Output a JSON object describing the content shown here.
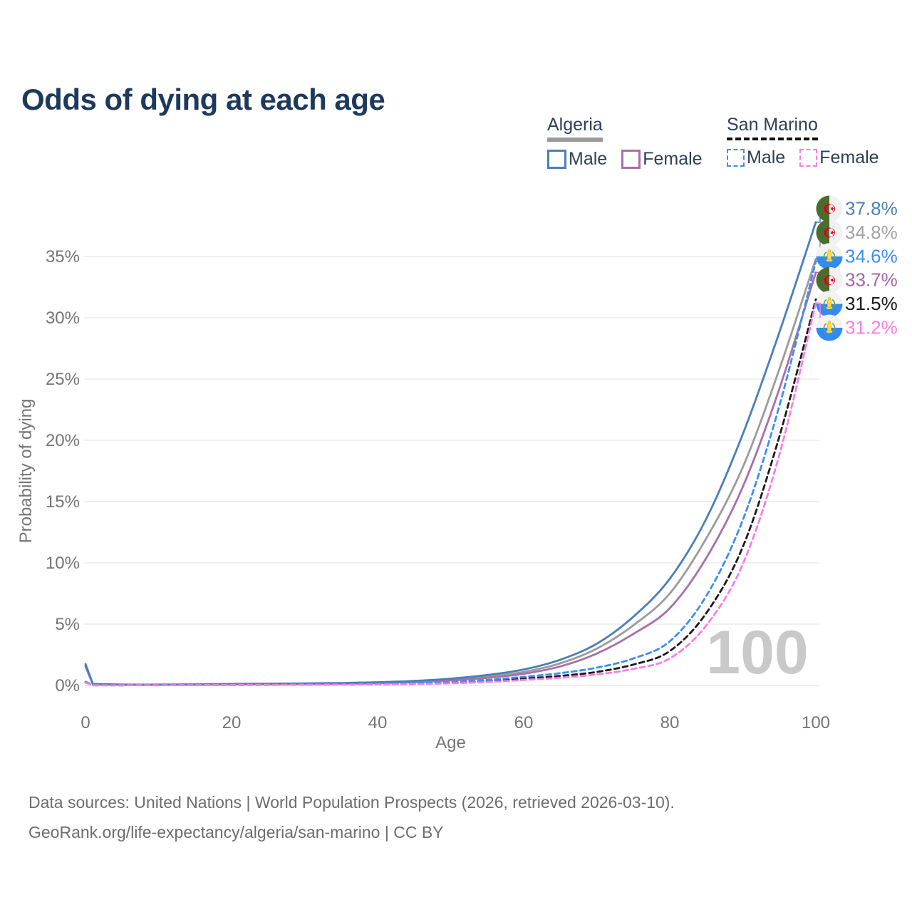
{
  "title": "Odds of dying at each age",
  "legend": {
    "groups": [
      {
        "name": "Algeria",
        "style": "solid",
        "underline_color": "#9a9a9a",
        "items": [
          {
            "label": "Male",
            "color": "#4a7ebb",
            "dashed": false
          },
          {
            "label": "Female",
            "color": "#a86fab",
            "dashed": false
          }
        ]
      },
      {
        "name": "San Marino",
        "style": "dashed",
        "underline_color": "#111111",
        "items": [
          {
            "label": "Male",
            "color": "#3d8ef2",
            "dashed": true
          },
          {
            "label": "Female",
            "color": "#fb7ce4",
            "dashed": true
          }
        ]
      }
    ]
  },
  "chart_data": {
    "type": "line",
    "title": "Odds of dying at each age",
    "xlabel": "Age",
    "ylabel": "Probability of dying",
    "xlim": [
      0,
      100
    ],
    "ylim": [
      0,
      39
    ],
    "x_ticks": [
      0,
      20,
      40,
      60,
      80,
      100
    ],
    "y_tick_values": [
      0,
      5,
      10,
      15,
      20,
      25,
      30,
      35
    ],
    "y_tick_labels": [
      "0%",
      "5%",
      "10%",
      "15%",
      "20%",
      "25%",
      "30%",
      "35%"
    ],
    "grid": "horizontal-only",
    "legend_position": "top-right",
    "hover_age_watermark": "100",
    "ages": [
      0,
      1,
      5,
      10,
      15,
      20,
      25,
      30,
      35,
      40,
      45,
      50,
      55,
      60,
      65,
      70,
      75,
      80,
      85,
      90,
      95,
      100
    ],
    "series": [
      {
        "id": "algeria-both",
        "country": "Algeria",
        "sex": "Both",
        "color": "#9b9b9b",
        "dashed": false,
        "values": [
          1.65,
          0.11,
          0.06,
          0.06,
          0.08,
          0.1,
          0.12,
          0.14,
          0.18,
          0.23,
          0.33,
          0.48,
          0.72,
          1.1,
          1.8,
          3.0,
          4.9,
          7.5,
          12.0,
          17.8,
          25.8,
          34.8
        ],
        "end_label": "34.8%",
        "label_color": "#a3a3a3",
        "label_row": 1,
        "flag": "algeria"
      },
      {
        "id": "algeria-female",
        "country": "Algeria",
        "sex": "Female",
        "color": "#a86fab",
        "dashed": false,
        "values": [
          1.55,
          0.1,
          0.05,
          0.05,
          0.06,
          0.08,
          0.09,
          0.11,
          0.14,
          0.19,
          0.28,
          0.42,
          0.62,
          0.95,
          1.55,
          2.6,
          4.2,
          6.3,
          10.4,
          16.2,
          24.2,
          33.7
        ],
        "end_label": "33.7%",
        "label_color": "#a765a8",
        "label_row": 3,
        "flag": "algeria"
      },
      {
        "id": "algeria-male",
        "country": "Algeria",
        "sex": "Male",
        "color": "#4a7ebb",
        "dashed": false,
        "values": [
          1.75,
          0.12,
          0.07,
          0.07,
          0.09,
          0.12,
          0.14,
          0.16,
          0.2,
          0.26,
          0.37,
          0.55,
          0.85,
          1.3,
          2.1,
          3.4,
          5.6,
          8.7,
          13.6,
          20.5,
          28.8,
          37.8
        ],
        "end_label": "37.8%",
        "label_color": "#4a7ebb",
        "label_row": 0,
        "flag": "algeria"
      },
      {
        "id": "san-marino-both",
        "country": "San Marino",
        "sex": "Both",
        "color": "#1a1a1a",
        "dashed": true,
        "values": [
          0.25,
          0.02,
          0.02,
          0.02,
          0.03,
          0.04,
          0.05,
          0.06,
          0.08,
          0.1,
          0.14,
          0.22,
          0.35,
          0.55,
          0.78,
          1.1,
          1.7,
          2.8,
          5.9,
          11.3,
          20.3,
          31.5
        ],
        "end_label": "31.5%",
        "label_color": "#1a1a1a",
        "label_row": 4,
        "flag": "san-marino"
      },
      {
        "id": "san-marino-male",
        "country": "San Marino",
        "sex": "Male",
        "color": "#3d8ef2",
        "dashed": true,
        "values": [
          0.3,
          0.03,
          0.02,
          0.02,
          0.04,
          0.06,
          0.07,
          0.08,
          0.1,
          0.13,
          0.18,
          0.28,
          0.45,
          0.7,
          1.0,
          1.45,
          2.2,
          3.6,
          7.3,
          13.5,
          22.8,
          34.6
        ],
        "end_label": "34.6%",
        "label_color": "#3d8ef2",
        "label_row": 2,
        "flag": "san-marino"
      },
      {
        "id": "san-marino-female",
        "country": "San Marino",
        "sex": "Female",
        "color": "#fb7ce4",
        "dashed": true,
        "values": [
          0.22,
          0.02,
          0.01,
          0.01,
          0.02,
          0.03,
          0.04,
          0.05,
          0.06,
          0.08,
          0.11,
          0.17,
          0.28,
          0.45,
          0.63,
          0.9,
          1.35,
          2.2,
          4.9,
          9.9,
          18.8,
          31.2
        ],
        "end_label": "31.2%",
        "label_color": "#fb7ce4",
        "label_row": 5,
        "flag": "san-marino"
      }
    ]
  },
  "flags": {
    "algeria": {
      "green": "#4a6d2b",
      "white": "#f1f1f1",
      "red": "#d80027"
    },
    "san_marino": {
      "white": "#f2f2f2",
      "blue": "#338af3",
      "gold": "#ffda44",
      "gold_dark": "#d4a900",
      "leaf": "#6da544"
    }
  },
  "styles": {
    "title_color": "#1d3a5c",
    "axis_text_color": "#757575",
    "grid_color": "#e8e8e8",
    "watermark_color": "#c9c9c9",
    "legend_text_color": "#2e3f57"
  },
  "footer": {
    "line1": "Data sources: United Nations | World Population Prospects (2026, retrieved 2026-03-10).",
    "line2": "GeoRank.org/life-expectancy/algeria/san-marino | CC BY"
  }
}
